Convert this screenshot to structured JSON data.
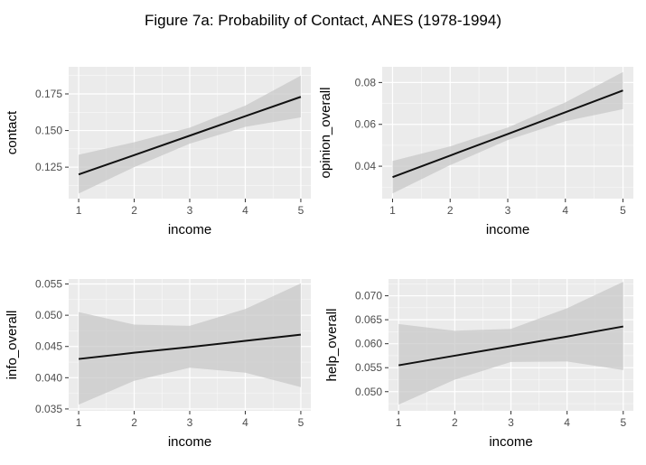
{
  "figure": {
    "title": "Figure 7a: Probability of Contact, ANES (1978-1994)"
  },
  "colors": {
    "panel_background": "#ebebeb",
    "grid_major": "#ffffff",
    "confidence_band": "#c8c8c8",
    "line": "#111111",
    "tick_mark": "#333333",
    "tick_label": "#4d4d4d"
  },
  "chart_data": [
    {
      "type": "line",
      "xlabel": "income",
      "ylabel": "contact",
      "xlim": [
        0.82,
        5.18
      ],
      "ylim": [
        0.1035,
        0.1935
      ],
      "x_ticks": [
        1,
        2,
        3,
        4,
        5
      ],
      "x_tick_labels": [
        "1",
        "2",
        "3",
        "4",
        "5"
      ],
      "y_ticks": [
        0.125,
        0.15,
        0.175
      ],
      "y_tick_labels": [
        "0.125",
        "0.150",
        "0.175"
      ],
      "grid": true,
      "series": [
        {
          "x": [
            1,
            2,
            3,
            4,
            5
          ],
          "y": [
            0.12,
            0.1332,
            0.1465,
            0.1598,
            0.173
          ],
          "lower": [
            0.107,
            0.125,
            0.141,
            0.1525,
            0.159
          ],
          "upper": [
            0.1335,
            0.142,
            0.152,
            0.167,
            0.1875
          ]
        }
      ]
    },
    {
      "type": "line",
      "xlabel": "income",
      "ylabel": "opinion_overall",
      "xlim": [
        0.82,
        5.18
      ],
      "ylim": [
        0.0245,
        0.0875
      ],
      "x_ticks": [
        1,
        2,
        3,
        4,
        5
      ],
      "x_tick_labels": [
        "1",
        "2",
        "3",
        "4",
        "5"
      ],
      "y_ticks": [
        0.04,
        0.06,
        0.08
      ],
      "y_tick_labels": [
        "0.04",
        "0.06",
        "0.08"
      ],
      "grid": true,
      "series": [
        {
          "x": [
            1,
            2,
            3,
            4,
            5
          ],
          "y": [
            0.0348,
            0.0451,
            0.0554,
            0.0658,
            0.0762
          ],
          "lower": [
            0.027,
            0.0405,
            0.0525,
            0.0615,
            0.0673
          ],
          "upper": [
            0.0425,
            0.0495,
            0.0585,
            0.0705,
            0.085
          ]
        }
      ]
    },
    {
      "type": "line",
      "xlabel": "income",
      "ylabel": "info_overall",
      "xlim": [
        0.82,
        5.18
      ],
      "ylim": [
        0.0347,
        0.0558
      ],
      "x_ticks": [
        1,
        2,
        3,
        4,
        5
      ],
      "x_tick_labels": [
        "1",
        "2",
        "3",
        "4",
        "5"
      ],
      "y_ticks": [
        0.035,
        0.04,
        0.045,
        0.05,
        0.055
      ],
      "y_tick_labels": [
        "0.035",
        "0.040",
        "0.045",
        "0.050",
        "0.055"
      ],
      "grid": true,
      "series": [
        {
          "x": [
            1,
            2,
            3,
            4,
            5
          ],
          "y": [
            0.043,
            0.044,
            0.0449,
            0.0459,
            0.0469
          ],
          "lower": [
            0.0357,
            0.0395,
            0.0416,
            0.0408,
            0.0385
          ],
          "upper": [
            0.0505,
            0.0485,
            0.0483,
            0.051,
            0.0551
          ]
        }
      ]
    },
    {
      "type": "line",
      "xlabel": "income",
      "ylabel": "help_overall",
      "xlim": [
        0.82,
        5.18
      ],
      "ylim": [
        0.046,
        0.0735
      ],
      "x_ticks": [
        1,
        2,
        3,
        4,
        5
      ],
      "x_tick_labels": [
        "1",
        "2",
        "3",
        "4",
        "5"
      ],
      "y_ticks": [
        0.05,
        0.055,
        0.06,
        0.065,
        0.07
      ],
      "y_tick_labels": [
        "0.050",
        "0.055",
        "0.060",
        "0.065",
        "0.070"
      ],
      "grid": true,
      "series": [
        {
          "x": [
            1,
            2,
            3,
            4,
            5
          ],
          "y": [
            0.0555,
            0.0575,
            0.0595,
            0.0615,
            0.0636
          ],
          "lower": [
            0.0473,
            0.0525,
            0.0562,
            0.0563,
            0.0545
          ],
          "upper": [
            0.0641,
            0.0627,
            0.0631,
            0.0674,
            0.0729
          ]
        }
      ]
    }
  ]
}
